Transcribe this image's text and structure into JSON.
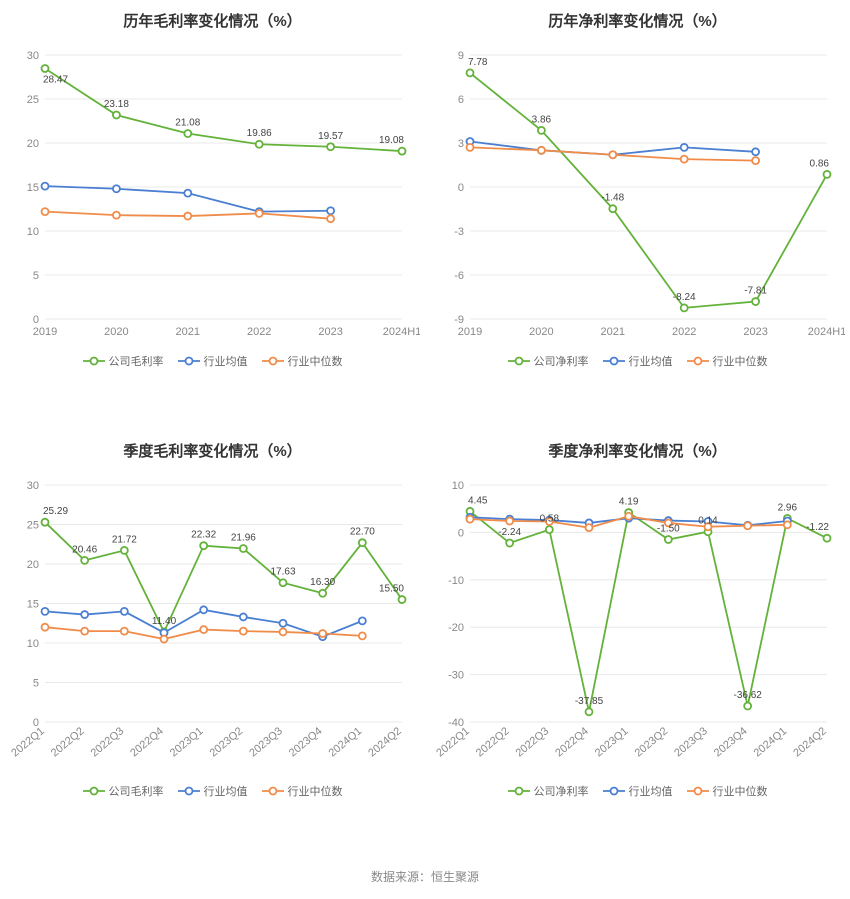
{
  "footer_text": "数据来源：恒生聚源",
  "colors": {
    "company": "#63b23a",
    "industry_avg": "#4a7fd1",
    "industry_median": "#f08c4a",
    "grid": "#e8e8e8",
    "axis_text": "#888888",
    "data_label": "#444444",
    "title": "#333333",
    "background": "#ffffff"
  },
  "typography": {
    "title_fontsize": 15,
    "axis_fontsize": 11,
    "label_fontsize": 10,
    "legend_fontsize": 11
  },
  "marker_radius": 3.5,
  "line_width": 1.8,
  "panels": [
    {
      "id": "annual_gross",
      "title": "历年毛利率变化情况（%）",
      "type": "line",
      "categories": [
        "2019",
        "2020",
        "2021",
        "2022",
        "2023",
        "2024H1"
      ],
      "ylim": [
        0,
        30
      ],
      "ytick_step": 5,
      "x_rotate": 0,
      "label_series": "company",
      "series": [
        {
          "key": "company",
          "name": "公司毛利率",
          "color": "#63b23a",
          "values": [
            28.47,
            23.18,
            21.08,
            19.86,
            19.57,
            19.08
          ]
        },
        {
          "key": "industry_avg",
          "name": "行业均值",
          "color": "#4a7fd1",
          "values": [
            15.1,
            14.8,
            14.3,
            12.2,
            12.3,
            null
          ]
        },
        {
          "key": "industry_median",
          "name": "行业中位数",
          "color": "#f08c4a",
          "values": [
            12.2,
            11.8,
            11.7,
            12.0,
            11.4,
            null
          ]
        }
      ]
    },
    {
      "id": "annual_net",
      "title": "历年净利率变化情况（%）",
      "type": "line",
      "categories": [
        "2019",
        "2020",
        "2021",
        "2022",
        "2023",
        "2024H1"
      ],
      "ylim": [
        -9,
        9
      ],
      "ytick_step": 3,
      "x_rotate": 0,
      "label_series": "company",
      "series": [
        {
          "key": "company",
          "name": "公司净利率",
          "color": "#63b23a",
          "values": [
            7.78,
            3.86,
            -1.48,
            -8.24,
            -7.81,
            0.86
          ]
        },
        {
          "key": "industry_avg",
          "name": "行业均值",
          "color": "#4a7fd1",
          "values": [
            3.1,
            2.5,
            2.2,
            2.7,
            2.4,
            null
          ]
        },
        {
          "key": "industry_median",
          "name": "行业中位数",
          "color": "#f08c4a",
          "values": [
            2.7,
            2.5,
            2.2,
            1.9,
            1.8,
            null
          ]
        }
      ]
    },
    {
      "id": "quarter_gross",
      "title": "季度毛利率变化情况（%）",
      "type": "line",
      "categories": [
        "2022Q1",
        "2022Q2",
        "2022Q3",
        "2022Q4",
        "2023Q1",
        "2023Q2",
        "2023Q3",
        "2023Q4",
        "2024Q1",
        "2024Q2"
      ],
      "ylim": [
        0,
        30
      ],
      "ytick_step": 5,
      "x_rotate": -40,
      "label_series": "company",
      "series": [
        {
          "key": "company",
          "name": "公司毛利率",
          "color": "#63b23a",
          "values": [
            25.29,
            20.46,
            21.72,
            11.4,
            22.32,
            21.96,
            17.63,
            16.3,
            22.7,
            15.5
          ]
        },
        {
          "key": "industry_avg",
          "name": "行业均值",
          "color": "#4a7fd1",
          "values": [
            14.0,
            13.6,
            14.0,
            11.3,
            14.2,
            13.3,
            12.5,
            10.8,
            12.8,
            null
          ]
        },
        {
          "key": "industry_median",
          "name": "行业中位数",
          "color": "#f08c4a",
          "values": [
            12.0,
            11.5,
            11.5,
            10.5,
            11.7,
            11.5,
            11.4,
            11.2,
            10.9,
            null
          ]
        }
      ]
    },
    {
      "id": "quarter_net",
      "title": "季度净利率变化情况（%）",
      "type": "line",
      "categories": [
        "2022Q1",
        "2022Q2",
        "2022Q3",
        "2022Q4",
        "2023Q1",
        "2023Q2",
        "2023Q3",
        "2023Q4",
        "2024Q1",
        "2024Q2"
      ],
      "ylim": [
        -40,
        10
      ],
      "ytick_step": 10,
      "x_rotate": -40,
      "label_series": "company",
      "series": [
        {
          "key": "company",
          "name": "公司净利率",
          "color": "#63b23a",
          "values": [
            4.45,
            -2.24,
            0.58,
            -37.85,
            4.19,
            -1.5,
            0.14,
            -36.62,
            2.96,
            -1.22
          ]
        },
        {
          "key": "industry_avg",
          "name": "行业均值",
          "color": "#4a7fd1",
          "values": [
            3.2,
            2.8,
            2.6,
            2.0,
            3.0,
            2.5,
            2.3,
            1.5,
            2.4,
            null
          ]
        },
        {
          "key": "industry_median",
          "name": "行业中位数",
          "color": "#f08c4a",
          "values": [
            2.8,
            2.4,
            2.3,
            1.0,
            3.4,
            2.0,
            1.2,
            1.4,
            1.6,
            null
          ]
        }
      ]
    }
  ]
}
